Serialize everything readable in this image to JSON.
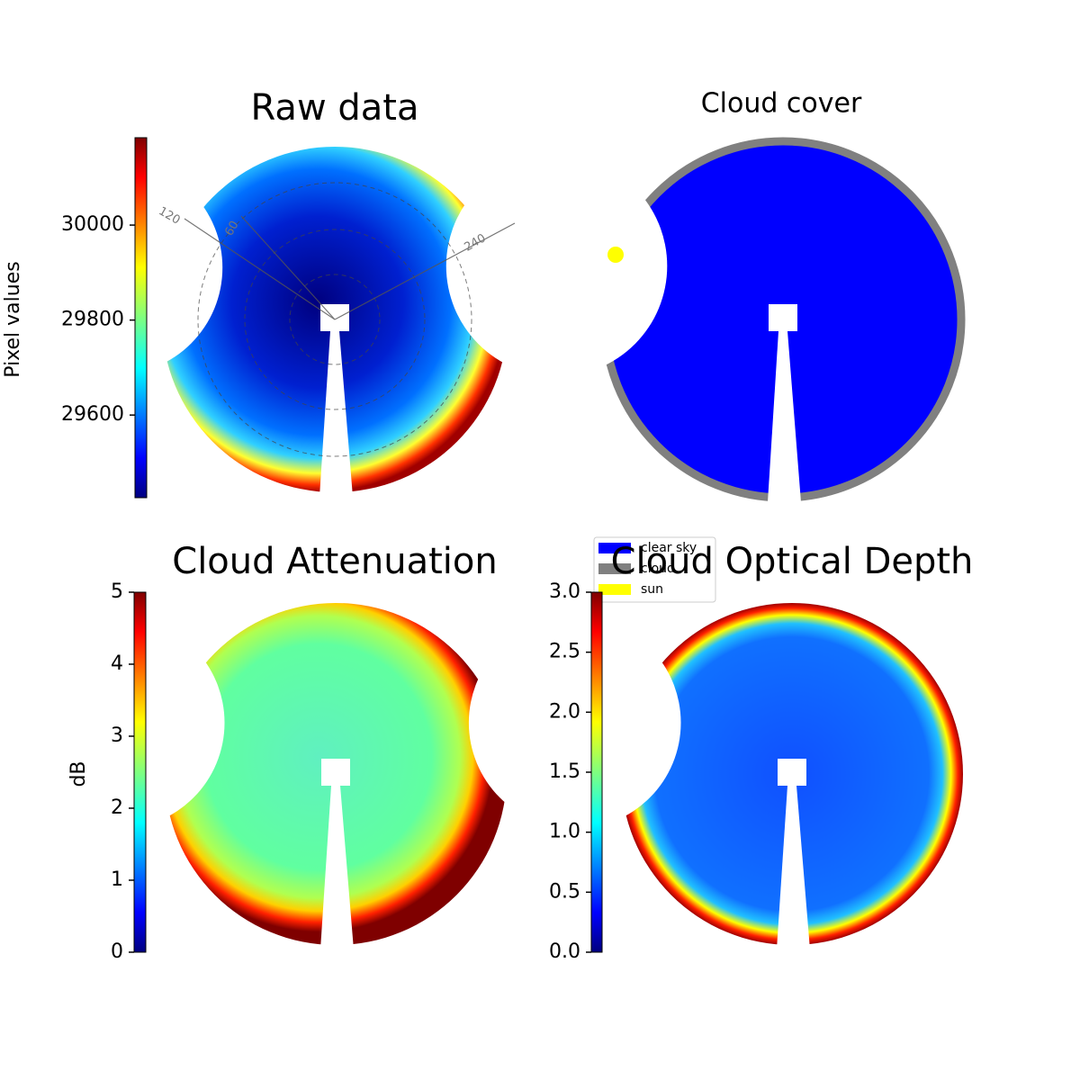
{
  "chart_data": [
    {
      "type": "image",
      "title": "Raw data",
      "colorbar_label": "Pixel values",
      "clim": [
        29426,
        30184
      ],
      "cticks": [
        29600,
        29800,
        30000
      ],
      "annotations": [
        "120",
        "60",
        "240"
      ]
    },
    {
      "type": "image",
      "title": "Cloud cover",
      "legend": [
        {
          "name": "clear sky",
          "color": "#0000ff"
        },
        {
          "name": "cloud",
          "color": "#808080"
        },
        {
          "name": "sun",
          "color": "#ffff00"
        }
      ]
    },
    {
      "type": "image",
      "title": "Cloud Attenuation",
      "colorbar_label": "dB",
      "clim": [
        0,
        5
      ],
      "cticks": [
        0,
        1,
        2,
        3,
        4,
        5
      ]
    },
    {
      "type": "image",
      "title": "Cloud Optical Depth",
      "clim": [
        0,
        3
      ],
      "cticks": [
        {
          "value": 0,
          "label": "0.0"
        },
        0.5,
        {
          "value": 1,
          "label": "1.0"
        },
        1.5,
        {
          "value": 2,
          "label": "2.0"
        },
        2.5,
        {
          "value": 3,
          "label": "3.0"
        }
      ]
    }
  ]
}
